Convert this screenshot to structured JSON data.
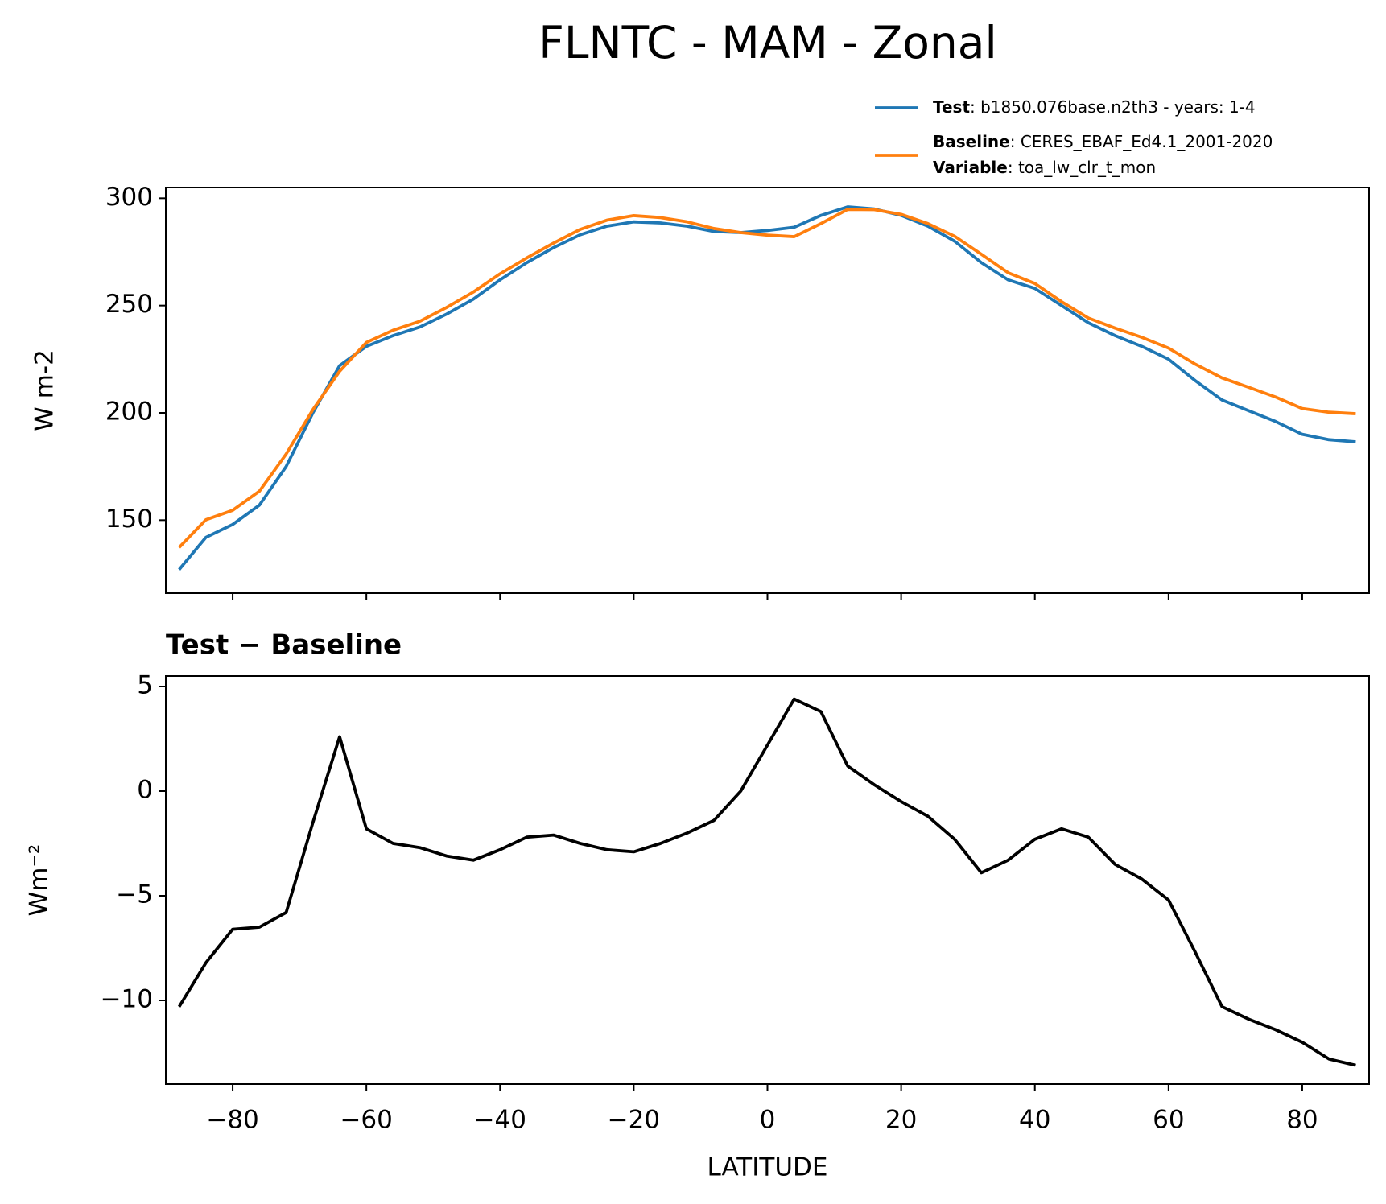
{
  "chart_data": [
    {
      "type": "line",
      "title": "FLNTC - MAM - Zonal",
      "ylabel": "W m-2",
      "xlim": [
        -90,
        90
      ],
      "xticks": [
        -80,
        -60,
        -40,
        -20,
        0,
        20,
        40,
        60,
        80
      ],
      "show_xtick_labels": false,
      "ylim": [
        116,
        305
      ],
      "yticks": [
        150,
        200,
        250,
        300
      ],
      "x": [
        -88,
        -84,
        -80,
        -76,
        -72,
        -68,
        -64,
        -60,
        -56,
        -52,
        -48,
        -44,
        -40,
        -36,
        -32,
        -28,
        -24,
        -20,
        -16,
        -12,
        -8,
        -4,
        0,
        4,
        8,
        12,
        16,
        20,
        24,
        28,
        32,
        36,
        40,
        44,
        48,
        52,
        56,
        60,
        64,
        68,
        72,
        76,
        80,
        84,
        88
      ],
      "series": [
        {
          "name": "Test",
          "label": ": b1850.076base.n2th3 - years: 1-4",
          "color": "#1f77b4",
          "values": [
            127,
            142,
            148,
            157,
            175,
            200,
            222,
            231,
            236,
            240,
            246,
            253,
            262,
            270,
            277,
            283,
            287,
            289,
            288.5,
            287,
            284.5,
            284,
            285,
            286.5,
            292,
            296,
            295,
            292,
            287,
            280,
            270,
            262,
            258,
            250,
            242,
            236,
            231,
            225,
            215,
            206,
            201,
            196,
            190,
            187.5,
            186.5
          ]
        },
        {
          "name": "Baseline",
          "label": ": CERES_EBAF_Ed4.1_2001-2020",
          "color": "#ff7f0e",
          "values": [
            137.3,
            150.2,
            154.6,
            163.5,
            180.8,
            201.5,
            219.4,
            232.8,
            238.5,
            242.7,
            249.1,
            256.3,
            264.8,
            272.2,
            279.1,
            285.5,
            289.8,
            291.9,
            291,
            289,
            285.9,
            284,
            282.8,
            282.1,
            288.2,
            294.8,
            294.7,
            292.5,
            288.2,
            282.3,
            273.9,
            265.3,
            260.3,
            251.8,
            244.2,
            239.5,
            235.2,
            230.2,
            222.7,
            216.3,
            211.9,
            207.4,
            202,
            200.3,
            199.6
          ]
        }
      ],
      "variable": {
        "name": "Variable",
        "label": ": toa_lw_clr_t_mon"
      }
    },
    {
      "type": "line",
      "title": "Test − Baseline",
      "ylabel": "Wm⁻²",
      "xlabel": "LATITUDE",
      "xlim": [
        -90,
        90
      ],
      "xticks": [
        {
          "value": -80,
          "label": "−80"
        },
        {
          "value": -60,
          "label": "−60"
        },
        {
          "value": -40,
          "label": "−40"
        },
        {
          "value": -20,
          "label": "−20"
        },
        0,
        20,
        40,
        60,
        80
      ],
      "show_xtick_labels": true,
      "ylim": [
        -14,
        5.5
      ],
      "yticks": [
        {
          "value": -10,
          "label": "−10"
        },
        {
          "value": -5,
          "label": "−5"
        },
        0,
        5
      ],
      "x": [
        -88,
        -84,
        -80,
        -76,
        -72,
        -68,
        -64,
        -60,
        -56,
        -52,
        -48,
        -44,
        -40,
        -36,
        -32,
        -28,
        -24,
        -20,
        -16,
        -12,
        -8,
        -4,
        0,
        4,
        8,
        12,
        16,
        20,
        24,
        28,
        32,
        36,
        40,
        44,
        48,
        52,
        56,
        60,
        64,
        68,
        72,
        76,
        80,
        84,
        88
      ],
      "series": [
        {
          "color": "#000000",
          "values": [
            -10.3,
            -8.2,
            -6.6,
            -6.5,
            -5.8,
            -1.5,
            2.6,
            -1.8,
            -2.5,
            -2.7,
            -3.1,
            -3.3,
            -2.8,
            -2.2,
            -2.1,
            -2.5,
            -2.8,
            -2.9,
            -2.5,
            -2.0,
            -1.4,
            0.0,
            2.2,
            4.4,
            3.8,
            1.2,
            0.3,
            -0.5,
            -1.2,
            -2.3,
            -3.9,
            -3.3,
            -2.3,
            -1.8,
            -2.2,
            -3.5,
            -4.2,
            -5.2,
            -7.7,
            -10.3,
            -10.9,
            -11.4,
            -12.0,
            -12.8,
            -13.1
          ]
        }
      ]
    }
  ]
}
